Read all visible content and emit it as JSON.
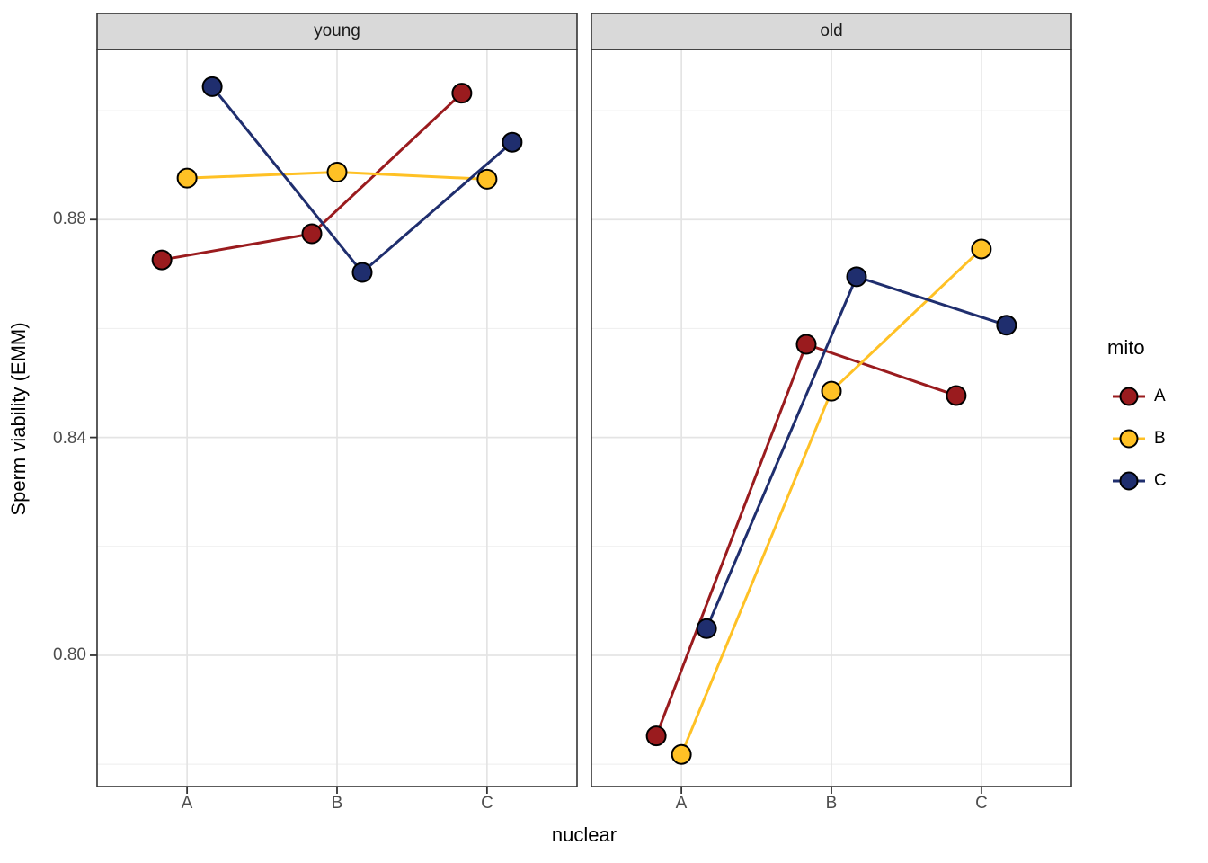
{
  "figure": {
    "background": "#ffffff",
    "x_axis_title": "nuclear",
    "y_axis_title": "Sperm viability (EMM)"
  },
  "chart_data": {
    "type": "line",
    "title": "",
    "xlabel": "nuclear",
    "ylabel": "Sperm viability (EMM)",
    "categories": [
      "A",
      "B",
      "C"
    ],
    "x_tick_labels": [
      "A",
      "B",
      "C"
    ],
    "y_ticks": [
      0.8,
      0.84,
      0.88
    ],
    "y_tick_labels": [
      "0.80",
      "0.84",
      "0.88"
    ],
    "y_minor_ticks": [
      0.78,
      0.82,
      0.86,
      0.9
    ],
    "ylim": [
      0.7759,
      0.9109
    ],
    "grid": "on",
    "legend_position": "right",
    "facets": [
      {
        "label": "young",
        "series": [
          {
            "name": "A",
            "color": "#9A1B1E",
            "values": [
              0.8726,
              0.8774,
              0.9032
            ]
          },
          {
            "name": "B",
            "color": "#FFC125",
            "values": [
              0.8876,
              0.8887,
              0.8874
            ]
          },
          {
            "name": "C",
            "color": "#1F2E6E",
            "values": [
              0.9044,
              0.8703,
              0.8942
            ]
          }
        ]
      },
      {
        "label": "old",
        "series": [
          {
            "name": "A",
            "color": "#9A1B1E",
            "values": [
              0.7852,
              0.8571,
              0.8477
            ]
          },
          {
            "name": "B",
            "color": "#FFC125",
            "values": [
              0.7818,
              0.8485,
              0.8746
            ]
          },
          {
            "name": "C",
            "color": "#1F2E6E",
            "values": [
              0.8049,
              0.8695,
              0.8606
            ]
          }
        ]
      }
    ],
    "legend": {
      "title": "mito",
      "entries": [
        {
          "label": "A",
          "color": "#9A1B1E"
        },
        {
          "label": "B",
          "color": "#FFC125"
        },
        {
          "label": "C",
          "color": "#1F2E6E"
        }
      ]
    },
    "style_colors": {
      "strip_fill": "#D9D9D9",
      "panel_border": "#333333",
      "grid_major": "#E4E4E4",
      "grid_minor": "#F0F0F0",
      "point_stroke": "#000000",
      "tick_color": "#333333"
    }
  }
}
